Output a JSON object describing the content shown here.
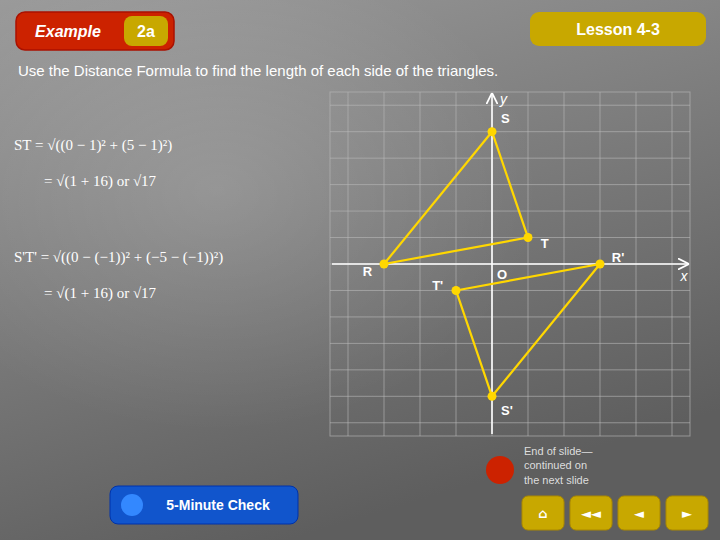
{
  "chart_data": {
    "type": "polygon",
    "title": "Use the Distance Formula to find the length of each side of the triangles.",
    "x_label": "x",
    "y_label": "y",
    "xlim": [
      -4.5,
      5.5
    ],
    "ylim": [
      -6.5,
      6.5
    ],
    "xticks": [
      -4,
      -3,
      -2,
      -1,
      0,
      1,
      2,
      3,
      4,
      5
    ],
    "yticks": [
      -6,
      -5,
      -4,
      -3,
      -2,
      -1,
      0,
      1,
      2,
      3,
      4,
      5,
      6
    ],
    "grid": true,
    "tick_labels": false,
    "color": "#FFD700",
    "marker": "circle",
    "series": [
      {
        "x": [
          -3,
          0,
          1
        ],
        "values": [
          0,
          5,
          1
        ],
        "labels": [
          "R",
          "S",
          "T"
        ]
      },
      {
        "x": [
          3,
          0,
          -1
        ],
        "values": [
          0,
          -5,
          -1
        ],
        "labels": [
          "R'",
          "S'",
          "T'"
        ]
      }
    ],
    "annotations": [
      "O",
      "ST = √((0 − 1)² + (5 − 1)²)",
      "= √(1 + 16)  or  √17",
      "S'T' = √((0 − (−1))² + (−5 − (−1))²)",
      "= √(1 + 16)  or  √17",
      "Lesson 4-3",
      "Example",
      "2a",
      "5-Minute Check",
      "End of slide—\ncontinued on\nthe next slide",
      "⌂",
      "◄◄",
      "◄",
      "►"
    ]
  }
}
